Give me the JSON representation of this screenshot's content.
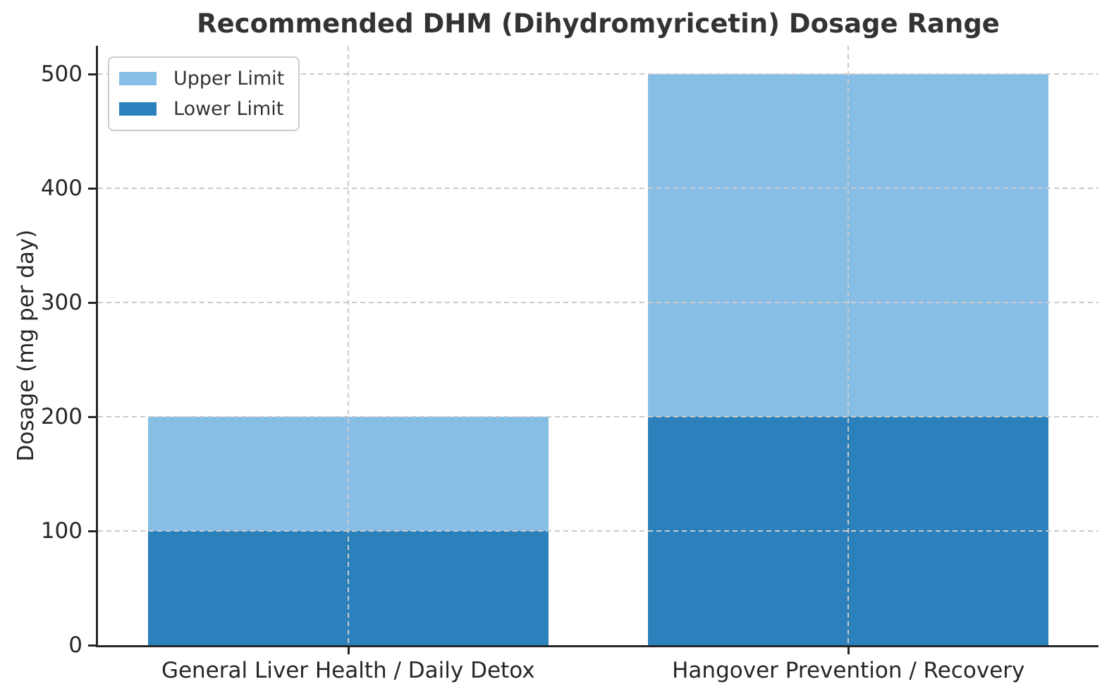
{
  "chart_data": {
    "type": "bar",
    "title": "Recommended DHM (Dihydromyricetin) Dosage Range",
    "categories": [
      "General Liver Health / Daily Detox",
      "Hangover Prevention / Recovery"
    ],
    "series": [
      {
        "name": "Upper Limit",
        "values": [
          200,
          500
        ],
        "color": "#86BEE5"
      },
      {
        "name": "Lower Limit",
        "values": [
          100,
          200
        ],
        "color": "#2C80BC"
      }
    ],
    "overlaid_bars": true,
    "xlabel": "",
    "ylabel": "Dosage (mg per day)",
    "ylim": [
      0,
      525
    ],
    "yticks": [
      0,
      100,
      200,
      300,
      400,
      500
    ],
    "bar_width_fraction": 0.8,
    "grid": true,
    "grid_style": "dashed",
    "grid_above_bars": true,
    "legend_position": "upper left",
    "colors": {
      "title_text": "#333333",
      "tick_text": "#262626",
      "spine": "#262626",
      "gridline": "#cbcbcb",
      "background": "#ffffff",
      "legend_border": "#cccccc"
    }
  }
}
